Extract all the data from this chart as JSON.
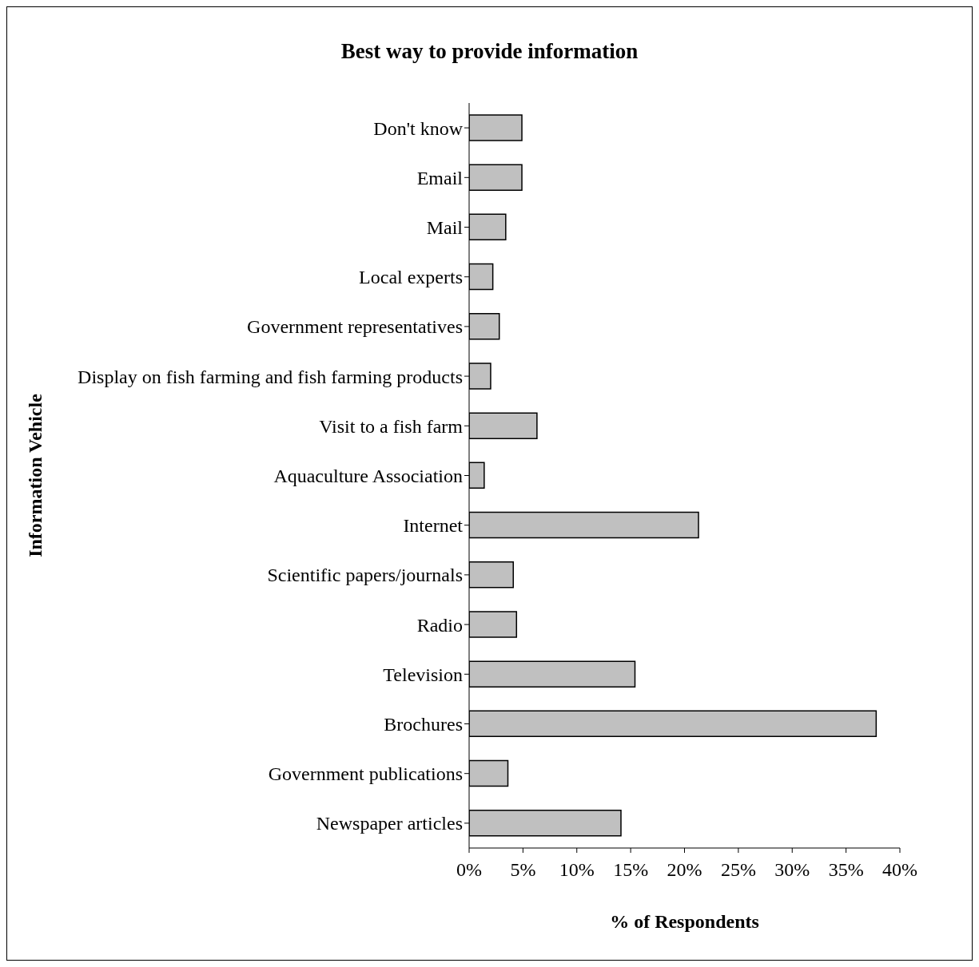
{
  "chart_data": {
    "type": "bar",
    "orientation": "horizontal",
    "title": "Best way to provide information",
    "xlabel": "% of Respondents",
    "ylabel": "Information Vehicle",
    "categories": [
      "Don't know",
      "Email",
      "Mail",
      "Local experts",
      "Government representatives",
      "Display on fish farming and fish farming products",
      "Visit to a fish farm",
      "Aquaculture Association",
      "Internet",
      "Scientific papers/journals",
      "Radio",
      "Television",
      "Brochures",
      "Government publications",
      "Newspaper articles"
    ],
    "values": [
      4.9,
      4.9,
      3.4,
      2.2,
      2.8,
      2.0,
      6.3,
      1.4,
      21.3,
      4.1,
      4.4,
      15.4,
      37.8,
      3.6,
      14.1
    ],
    "color": "#c0c0c0",
    "xlim": [
      0,
      40
    ],
    "xticks": [
      {
        "value": 0,
        "label": "0%"
      },
      {
        "value": 5,
        "label": "5%"
      },
      {
        "value": 10,
        "label": "10%"
      },
      {
        "value": 15,
        "label": "15%"
      },
      {
        "value": 20,
        "label": "20%"
      },
      {
        "value": 25,
        "label": "25%"
      },
      {
        "value": 30,
        "label": "30%"
      },
      {
        "value": 35,
        "label": "35%"
      },
      {
        "value": 40,
        "label": "40%"
      }
    ],
    "grid": false,
    "legend": false
  }
}
